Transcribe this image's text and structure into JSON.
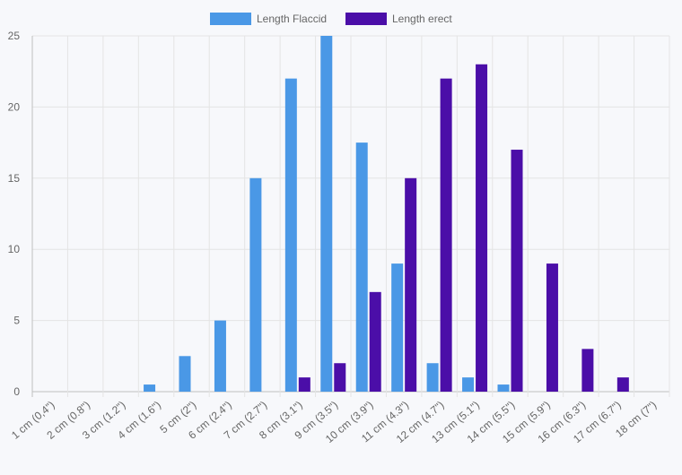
{
  "chart_data": {
    "type": "bar",
    "categories": [
      "1 cm (0,4\")",
      "2 cm (0.8\")",
      "3 cm (1.2\")",
      "4 cm (1.6\")",
      "5 cm (2\")",
      "6 cm (2.4\")",
      "7 cm (2.7\")",
      "8 cm (3.1\")",
      "9 cm (3.5\")",
      "10 cm (3.9\")",
      "11 cm (4.3\")",
      "12 cm (4.7\")",
      "13 cm (5.1\")",
      "14 cm (5.5\")",
      "15 cm (5.9\")",
      "16 cm (6.3\")",
      "17 cm (6.7\")",
      "18 cm (7\")"
    ],
    "series": [
      {
        "name": "Length Flaccid",
        "color": "#4a98e6",
        "values": [
          0,
          0,
          0,
          0.5,
          2.5,
          5,
          15,
          22,
          25,
          17.5,
          9,
          2,
          1,
          0.5,
          0,
          0,
          0,
          0
        ]
      },
      {
        "name": "Length erect",
        "color": "#4b0ea8",
        "values": [
          0,
          0,
          0,
          0,
          0,
          0,
          0,
          1,
          2,
          7,
          15,
          22,
          23,
          17,
          9,
          3,
          1,
          0
        ]
      }
    ],
    "ylim": [
      0,
      25
    ],
    "yticks": [
      0,
      5,
      10,
      15,
      20,
      25
    ],
    "grid": true,
    "legend_position": "top-center"
  }
}
